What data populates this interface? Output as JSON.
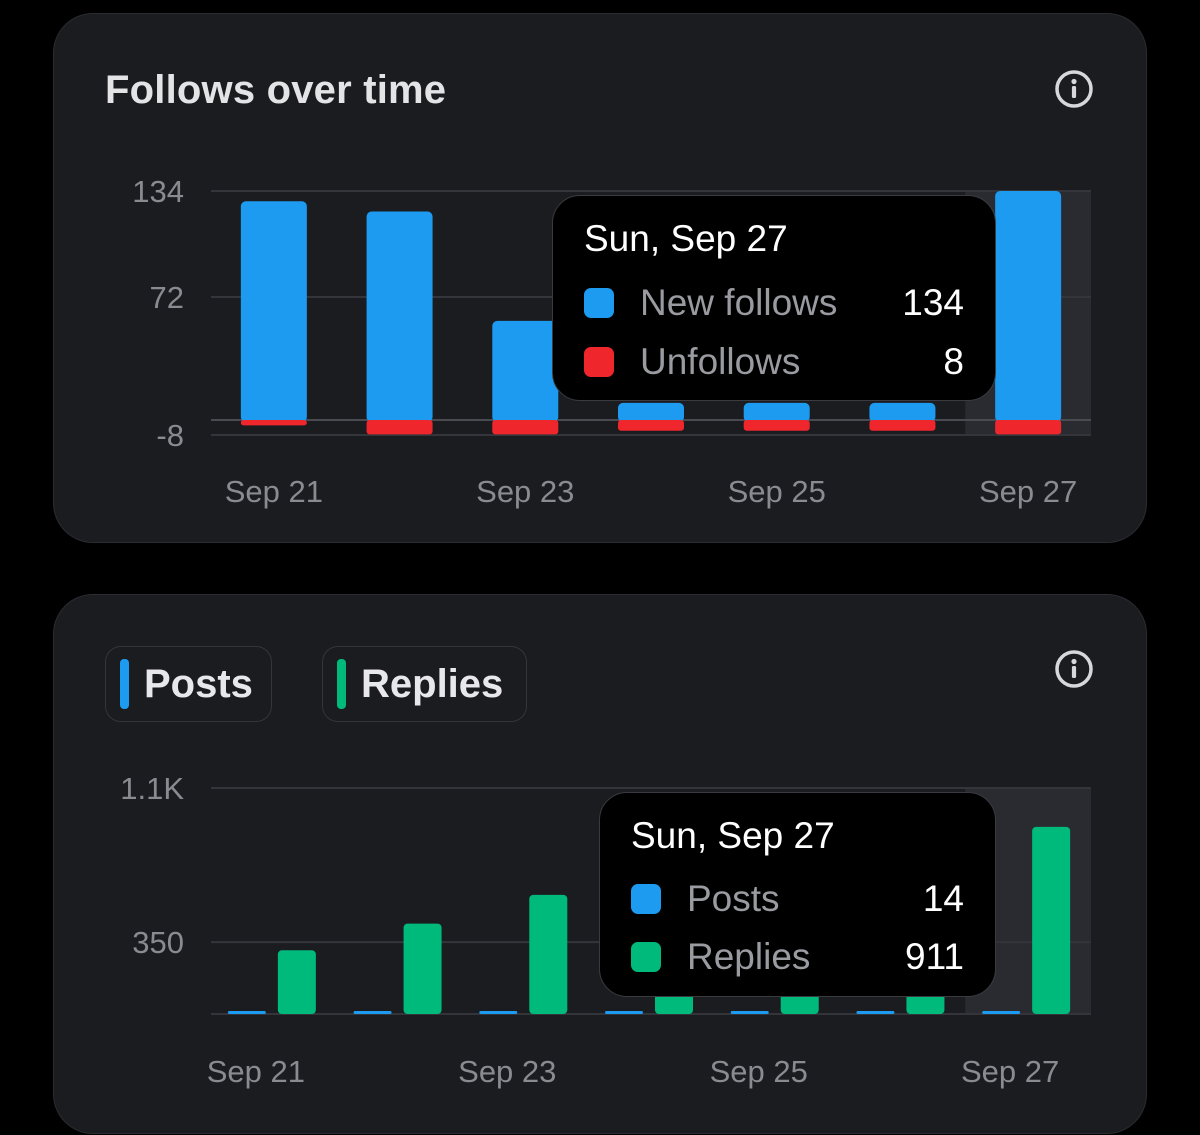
{
  "colors": {
    "background": "#000000",
    "card": "#1b1c20",
    "new_follows": "#1d9bf0",
    "unfollows": "#f0262d",
    "posts": "#1d9bf0",
    "replies": "#00ba7c",
    "highlight": "#2a2b30"
  },
  "follows_card": {
    "title": "Follows over time",
    "info_icon": "info-circle-icon",
    "tooltip": {
      "title": "Sun, Sep 27",
      "rows": [
        {
          "label": "New follows",
          "value": "134",
          "color": "#1d9bf0"
        },
        {
          "label": "Unfollows",
          "value": "8",
          "color": "#f0262d"
        }
      ]
    }
  },
  "posts_card": {
    "info_icon": "info-circle-icon",
    "toggles": [
      {
        "label": "Posts",
        "color": "#1d9bf0"
      },
      {
        "label": "Replies",
        "color": "#00ba7c"
      }
    ],
    "tooltip": {
      "title": "Sun, Sep 27",
      "rows": [
        {
          "label": "Posts",
          "value": "14",
          "color": "#1d9bf0"
        },
        {
          "label": "Replies",
          "value": "911",
          "color": "#00ba7c"
        }
      ]
    }
  },
  "chart_data": [
    {
      "type": "bar",
      "stacked": true,
      "title": "Follows over time",
      "categories": [
        "Sep 21",
        "Sep 22",
        "Sep 23",
        "Sep 24",
        "Sep 25",
        "Sep 26",
        "Sep 27"
      ],
      "x_tick_labels": [
        "Sep 21",
        "Sep 23",
        "Sep 25",
        "Sep 27"
      ],
      "y_tick_labels": [
        "134",
        "72",
        "-8"
      ],
      "y_ticks": [
        134,
        72,
        -8
      ],
      "ylim": [
        -8,
        134
      ],
      "grid": true,
      "highlighted_category": "Sep 27",
      "series": [
        {
          "name": "New follows",
          "color": "#1d9bf0",
          "values": [
            128,
            122,
            58,
            10,
            10,
            10,
            134
          ]
        },
        {
          "name": "Unfollows",
          "color": "#f0262d",
          "values": [
            -3,
            -8,
            -8,
            -6,
            -6,
            -6,
            -8
          ]
        }
      ]
    },
    {
      "type": "bar",
      "stacked": false,
      "categories": [
        "Sep 21",
        "Sep 22",
        "Sep 23",
        "Sep 24",
        "Sep 25",
        "Sep 26",
        "Sep 27"
      ],
      "x_tick_labels": [
        "Sep 21",
        "Sep 23",
        "Sep 25",
        "Sep 27"
      ],
      "y_tick_labels": [
        "1.1K",
        "350"
      ],
      "y_ticks": [
        1100,
        350
      ],
      "ylim": [
        0,
        1100
      ],
      "grid": true,
      "highlighted_category": "Sep 27",
      "series": [
        {
          "name": "Posts",
          "color": "#1d9bf0",
          "values": [
            14,
            14,
            14,
            14,
            14,
            14,
            14
          ]
        },
        {
          "name": "Replies",
          "color": "#00ba7c",
          "values": [
            310,
            440,
            580,
            120,
            120,
            120,
            911
          ]
        }
      ]
    }
  ]
}
